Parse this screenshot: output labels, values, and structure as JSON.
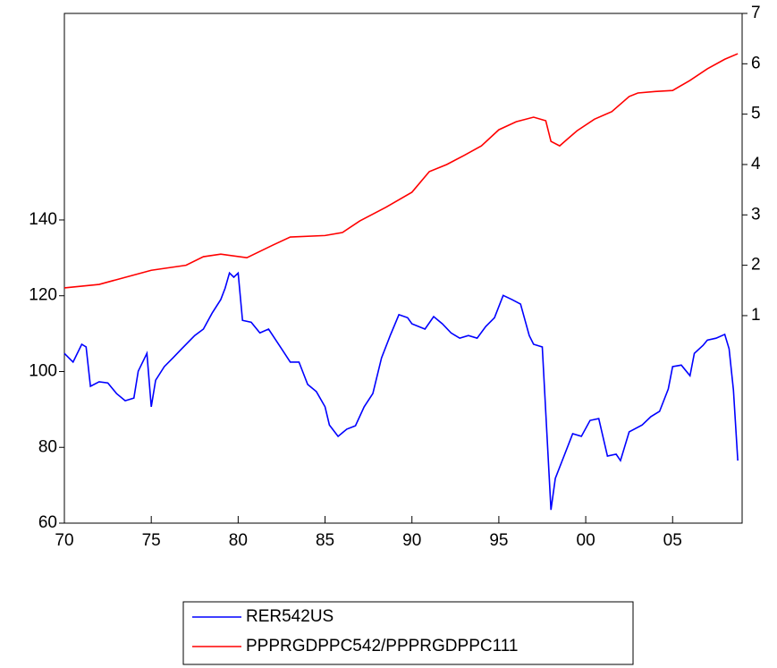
{
  "chart_data": {
    "type": "line",
    "xlim": [
      1970,
      2009
    ],
    "xticks": [
      {
        "value": 1970,
        "label": "70"
      },
      {
        "value": 1975,
        "label": "75"
      },
      {
        "value": 1980,
        "label": "80"
      },
      {
        "value": 1985,
        "label": "85"
      },
      {
        "value": 1990,
        "label": "90"
      },
      {
        "value": 1995,
        "label": "95"
      },
      {
        "value": 2000,
        "label": "00"
      },
      {
        "value": 2005,
        "label": "05"
      }
    ],
    "ylim": [
      60,
      194.5
    ],
    "yticks": [
      60,
      80,
      100,
      120,
      140
    ],
    "y2lim": [
      -3.12,
      7
    ],
    "y2ticks": [
      1,
      2,
      3,
      4,
      5,
      6,
      7
    ],
    "series": [
      {
        "name": "RER542US",
        "color": "#0000ff",
        "x": [
          1970,
          1970.5,
          1971,
          1971.25,
          1971.5,
          1972,
          1972.5,
          1973,
          1973.5,
          1974,
          1974.25,
          1974.75,
          1975,
          1975.25,
          1975.75,
          1976.25,
          1976.75,
          1977.5,
          1978,
          1978.5,
          1979,
          1979.25,
          1979.5,
          1979.75,
          1980,
          1980.25,
          1980.75,
          1981.25,
          1981.75,
          1982.5,
          1983,
          1983.5,
          1984,
          1984.5,
          1985,
          1985.25,
          1985.75,
          1986.25,
          1986.75,
          1987.25,
          1987.75,
          1988.25,
          1988.75,
          1989.25,
          1989.75,
          1990,
          1990.75,
          1991.25,
          1991.75,
          1992.25,
          1992.75,
          1993.25,
          1993.75,
          1994.25,
          1994.75,
          1995.25,
          1995.75,
          1996.25,
          1996.75,
          1997,
          1997.5,
          1998,
          1998.25,
          1998.75,
          1999.25,
          1999.75,
          2000.25,
          2000.75,
          2001.25,
          2001.75,
          2002,
          2002.5,
          2003.25,
          2003.75,
          2004.25,
          2004.75,
          2005,
          2005.5,
          2006,
          2006.25,
          2006.75,
          2007,
          2007.5,
          2008,
          2008.25,
          2008.5,
          2008.75
        ],
        "values": [
          104.8,
          102.5,
          107.2,
          106.5,
          96.1,
          97.3,
          97.0,
          94.2,
          92.3,
          93.0,
          100.1,
          104.8,
          90.7,
          97.7,
          101.3,
          103.6,
          106.0,
          109.5,
          111.2,
          115.4,
          119.0,
          122.0,
          126.0,
          124.9,
          126.0,
          113.5,
          113.0,
          110.2,
          111.2,
          106.0,
          102.5,
          102.5,
          96.6,
          94.7,
          90.7,
          85.9,
          82.9,
          84.8,
          85.7,
          90.7,
          94.2,
          103.6,
          109.5,
          115.0,
          114.2,
          112.6,
          111.2,
          114.5,
          112.6,
          110.2,
          108.8,
          109.5,
          108.8,
          111.9,
          114.2,
          120.1,
          119.0,
          117.8,
          109.5,
          107.2,
          106.5,
          63.5,
          71.8,
          77.7,
          83.6,
          82.9,
          87.1,
          87.6,
          77.7,
          78.2,
          76.5,
          84.1,
          85.9,
          88.1,
          89.5,
          95.4,
          101.3,
          101.7,
          98.9,
          104.8,
          106.9,
          108.3,
          108.8,
          109.8,
          106.0,
          95.1,
          76.5
        ]
      },
      {
        "name": "PPPRGDPPC542/PPPRGDPPC111",
        "color": "#ff0000",
        "axis": "y2",
        "x": [
          1970,
          1972,
          1975,
          1977,
          1978,
          1979,
          1980.5,
          1982,
          1983,
          1985,
          1986,
          1987,
          1988.5,
          1990,
          1991,
          1992,
          1993,
          1994,
          1995,
          1996,
          1997,
          1997.7,
          1998,
          1998.5,
          1999.5,
          2000.5,
          2001.5,
          2002.5,
          2003,
          2004,
          2005,
          2006,
          2007,
          2008,
          2008.75
        ],
        "values": [
          1.55,
          1.62,
          1.9,
          2.0,
          2.17,
          2.22,
          2.15,
          2.4,
          2.56,
          2.59,
          2.65,
          2.88,
          3.15,
          3.45,
          3.86,
          4.0,
          4.18,
          4.37,
          4.69,
          4.85,
          4.94,
          4.87,
          4.46,
          4.37,
          4.67,
          4.9,
          5.05,
          5.35,
          5.42,
          5.45,
          5.47,
          5.67,
          5.9,
          6.09,
          6.2
        ]
      }
    ]
  }
}
